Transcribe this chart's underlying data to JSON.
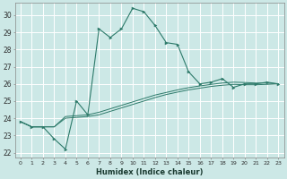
{
  "xlabel": "Humidex (Indice chaleur)",
  "bg_color": "#cce8e6",
  "grid_color": "#ffffff",
  "line_color": "#2d7a6a",
  "xlim": [
    -0.5,
    23.5
  ],
  "ylim": [
    21.7,
    30.7
  ],
  "yticks": [
    22,
    23,
    24,
    25,
    26,
    27,
    28,
    29,
    30
  ],
  "xticks": [
    0,
    1,
    2,
    3,
    4,
    5,
    6,
    7,
    8,
    9,
    10,
    11,
    12,
    13,
    14,
    15,
    16,
    17,
    18,
    19,
    20,
    21,
    22,
    23
  ],
  "series0": [
    23.8,
    23.5,
    23.5,
    22.8,
    22.2,
    25.0,
    24.2,
    29.2,
    28.7,
    29.2,
    30.4,
    30.2,
    29.4,
    28.4,
    28.3,
    26.7,
    26.0,
    26.1,
    26.3,
    25.8,
    26.0,
    26.0,
    26.1,
    26.0
  ],
  "series1": [
    23.8,
    23.5,
    23.5,
    23.5,
    24.1,
    24.15,
    24.2,
    24.35,
    24.55,
    24.75,
    24.95,
    25.15,
    25.35,
    25.5,
    25.65,
    25.78,
    25.88,
    25.97,
    26.05,
    26.1,
    26.08,
    26.05,
    26.05,
    26.0
  ],
  "series2": [
    23.8,
    23.5,
    23.5,
    23.5,
    24.0,
    24.05,
    24.1,
    24.2,
    24.4,
    24.6,
    24.8,
    25.0,
    25.2,
    25.38,
    25.52,
    25.65,
    25.75,
    25.85,
    25.92,
    25.97,
    25.95,
    25.95,
    25.97,
    26.0
  ]
}
